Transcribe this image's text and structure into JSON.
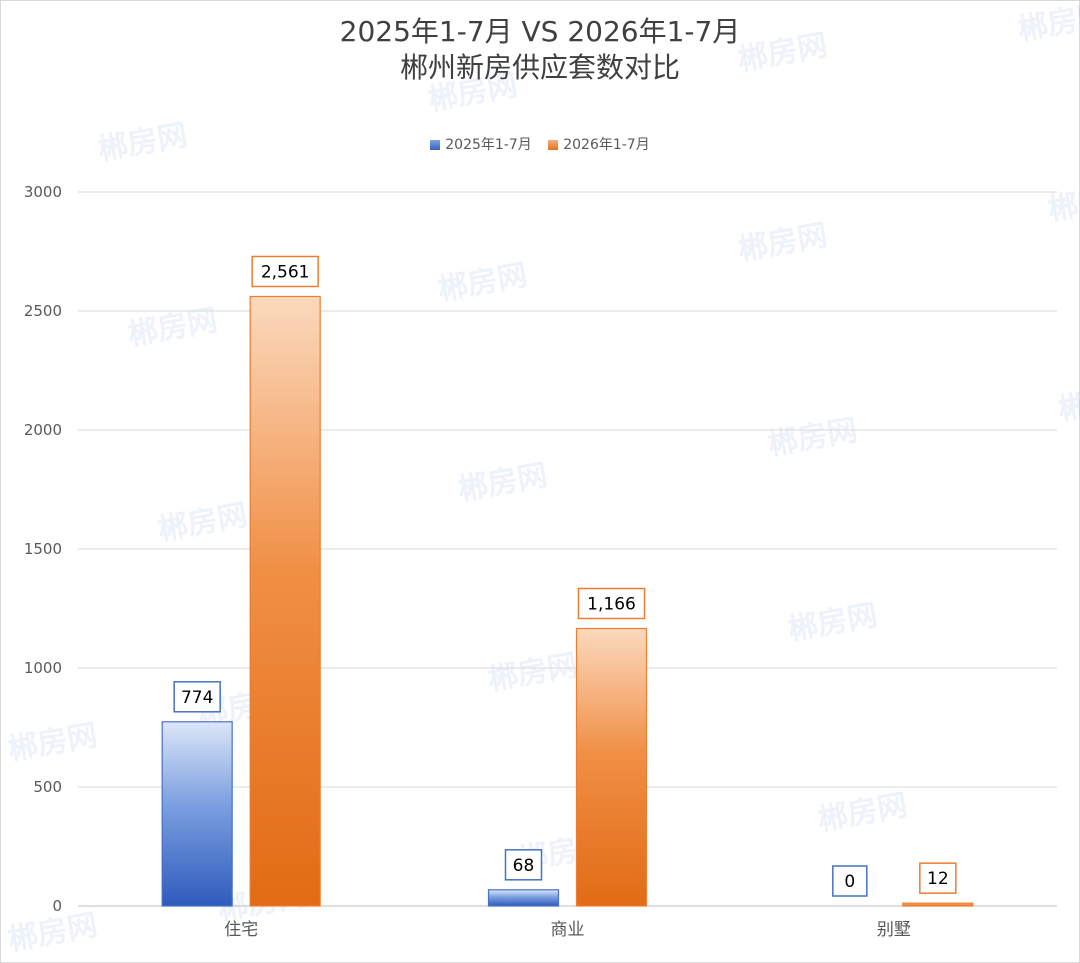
{
  "chart_data": {
    "type": "bar",
    "title_line1": "2025年1-7月 VS 2026年1-7月",
    "title_line2": "郴州新房供应套数对比",
    "categories": [
      "住宅",
      "商业",
      "别墅"
    ],
    "series": [
      {
        "name": "2025年1-7月",
        "values": [
          774,
          68,
          0
        ],
        "color": "#4472c4"
      },
      {
        "name": "2026年1-7月",
        "values": [
          2561,
          1166,
          12
        ],
        "color": "#ed7d31"
      }
    ],
    "data_labels": [
      [
        "774",
        "68",
        "0"
      ],
      [
        "2,561",
        "1,166",
        "12"
      ]
    ],
    "ylim": [
      0,
      3000
    ],
    "yticks": [
      0,
      500,
      1000,
      1500,
      2000,
      2500,
      3000
    ],
    "grid": true,
    "legend_position": "top"
  },
  "watermark": {
    "text": "郴房网"
  }
}
